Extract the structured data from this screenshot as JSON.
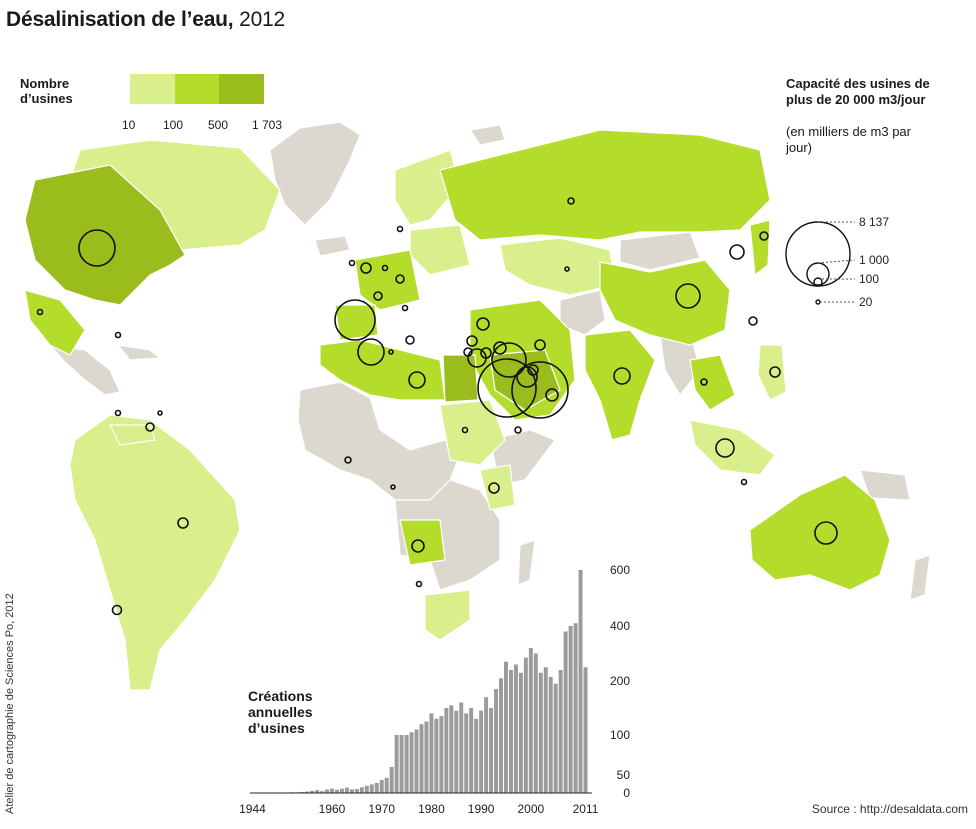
{
  "title": {
    "main": "Désalinisation de l’eau,",
    "year": "2012"
  },
  "legend": {
    "title": "Nombre d’usines",
    "ticks": [
      "10",
      "100",
      "500",
      "1 703"
    ],
    "colors": [
      "#d9ef8b",
      "#b3dc2b",
      "#9abc1c"
    ],
    "no_data_color": "#dcd8cf"
  },
  "capacity": {
    "title": "Capacité des usines de plus de 20 000 m3/jour",
    "subtitle": "(en milliers de m3 par jour)",
    "values": [
      "8 137",
      "1 000",
      "100",
      "20"
    ]
  },
  "histogram": {
    "title": "Créations annuelles d’usines",
    "x_labels": [
      "1944",
      "1960",
      "1970",
      "1980",
      "1990",
      "2000",
      "2011"
    ],
    "y_labels": [
      "600",
      "400",
      "200",
      "100",
      "50",
      "0"
    ]
  },
  "chart_data": {
    "type": "bar",
    "title": "Créations annuelles d’usines",
    "x": [
      1944,
      1945,
      1946,
      1947,
      1948,
      1949,
      1950,
      1951,
      1952,
      1953,
      1954,
      1955,
      1956,
      1957,
      1958,
      1959,
      1960,
      1961,
      1962,
      1963,
      1964,
      1965,
      1966,
      1967,
      1968,
      1969,
      1970,
      1971,
      1972,
      1973,
      1974,
      1975,
      1976,
      1977,
      1978,
      1979,
      1980,
      1981,
      1982,
      1983,
      1984,
      1985,
      1986,
      1987,
      1988,
      1989,
      1990,
      1991,
      1992,
      1993,
      1994,
      1995,
      1996,
      1997,
      1998,
      1999,
      2000,
      2001,
      2002,
      2003,
      2004,
      2005,
      2006,
      2007,
      2008,
      2009,
      2010,
      2011
    ],
    "values": [
      1,
      0,
      0,
      1,
      0,
      1,
      1,
      1,
      2,
      2,
      3,
      4,
      6,
      8,
      5,
      10,
      12,
      9,
      12,
      15,
      10,
      11,
      16,
      20,
      24,
      28,
      36,
      42,
      60,
      100,
      100,
      100,
      105,
      110,
      120,
      125,
      140,
      130,
      135,
      150,
      155,
      145,
      160,
      140,
      150,
      130,
      145,
      170,
      150,
      185,
      210,
      270,
      240,
      260,
      230,
      285,
      320,
      300,
      230,
      250,
      215,
      195,
      240,
      380,
      400,
      410,
      600,
      250
    ],
    "ylim": [
      0,
      600
    ],
    "yticks": [
      0,
      50,
      100,
      200,
      400,
      600
    ],
    "grid": false
  },
  "source": "Source : http://desaldata.com",
  "credit": "Atelier de cartographie de Sciences Po, 2012"
}
